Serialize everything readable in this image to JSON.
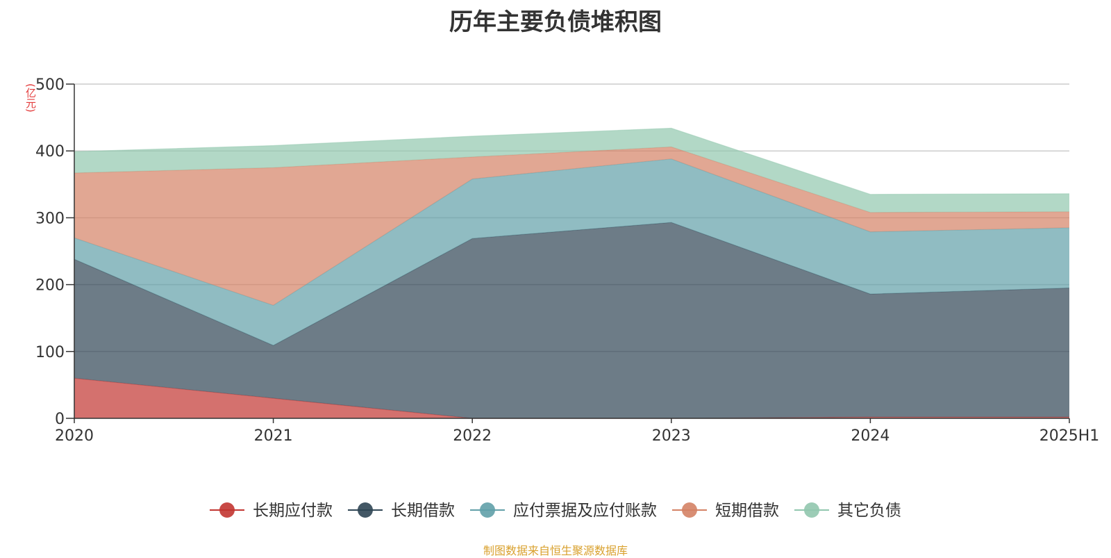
{
  "chart_data": {
    "type": "area",
    "stacked": true,
    "title": "历年主要负债堆积图",
    "unit_label": "(亿元)",
    "categories": [
      "2020",
      "2021",
      "2022",
      "2023",
      "2024",
      "2025H1"
    ],
    "ylim": [
      0,
      500
    ],
    "y_ticks": [
      0,
      100,
      200,
      300,
      400,
      500
    ],
    "series": [
      {
        "name": "长期应付款",
        "color": "#c23531",
        "values": [
          60,
          30,
          0,
          0,
          2,
          2
        ]
      },
      {
        "name": "长期借款",
        "color": "#2f4554",
        "values": [
          178,
          79,
          269,
          293,
          184,
          193
        ]
      },
      {
        "name": "应付票据及应付账款",
        "color": "#61a0a8",
        "values": [
          32,
          60,
          89,
          95,
          93,
          90
        ]
      },
      {
        "name": "短期借款",
        "color": "#d48265",
        "values": [
          97,
          206,
          33,
          18,
          29,
          24
        ]
      },
      {
        "name": "其它负债",
        "color": "#91c7ae",
        "values": [
          32,
          33,
          31,
          28,
          27,
          27
        ]
      }
    ],
    "legend_position": "bottom-center",
    "grid": true
  },
  "footer": {
    "source": "制图数据来自恒生聚源数据库"
  }
}
